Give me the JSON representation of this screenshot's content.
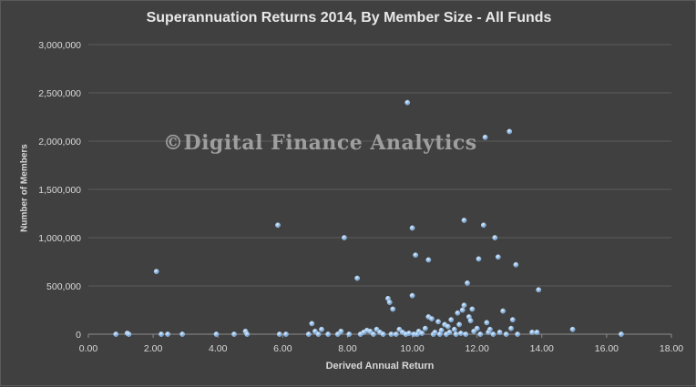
{
  "chart_data": {
    "type": "scatter",
    "title": "Superannuation Returns 2014, By Member Size - All Funds",
    "xlabel": "Derived Annual Return",
    "ylabel": "Number of Members",
    "xlim": [
      0,
      18
    ],
    "ylim": [
      0,
      3000000
    ],
    "x_ticks": [
      "0.00",
      "2.00",
      "4.00",
      "6.00",
      "8.00",
      "10.00",
      "12.00",
      "14.00",
      "16.00",
      "18.00"
    ],
    "y_ticks": [
      "0",
      "500,000",
      "1,000,000",
      "1,500,000",
      "2,000,000",
      "2,500,000",
      "3,000,000"
    ],
    "grid": "horizontal",
    "legend": "none",
    "marker_color": "#9cc3ea",
    "series": [
      {
        "points": [
          [
            0.85,
            0
          ],
          [
            1.2,
            10000
          ],
          [
            1.25,
            0
          ],
          [
            2.1,
            650000
          ],
          [
            2.25,
            0
          ],
          [
            2.45,
            0
          ],
          [
            2.9,
            0
          ],
          [
            3.95,
            0
          ],
          [
            4.5,
            0
          ],
          [
            4.85,
            30000
          ],
          [
            4.9,
            0
          ],
          [
            5.85,
            1130000
          ],
          [
            5.9,
            0
          ],
          [
            6.1,
            0
          ],
          [
            6.8,
            0
          ],
          [
            6.9,
            110000
          ],
          [
            7.0,
            30000
          ],
          [
            7.1,
            0
          ],
          [
            7.2,
            50000
          ],
          [
            7.4,
            0
          ],
          [
            7.7,
            0
          ],
          [
            7.8,
            30000
          ],
          [
            7.9,
            1000000
          ],
          [
            8.05,
            0
          ],
          [
            8.3,
            580000
          ],
          [
            8.4,
            0
          ],
          [
            8.5,
            20000
          ],
          [
            8.6,
            40000
          ],
          [
            8.7,
            30000
          ],
          [
            8.8,
            0
          ],
          [
            8.9,
            50000
          ],
          [
            9.0,
            20000
          ],
          [
            9.1,
            0
          ],
          [
            9.25,
            370000
          ],
          [
            9.3,
            330000
          ],
          [
            9.35,
            0
          ],
          [
            9.4,
            260000
          ],
          [
            9.5,
            0
          ],
          [
            9.6,
            50000
          ],
          [
            9.7,
            20000
          ],
          [
            9.8,
            0
          ],
          [
            9.85,
            2400000
          ],
          [
            9.9,
            10000
          ],
          [
            10.0,
            400000
          ],
          [
            10.0,
            1100000
          ],
          [
            10.05,
            0
          ],
          [
            10.1,
            820000
          ],
          [
            10.15,
            0
          ],
          [
            10.2,
            30000
          ],
          [
            10.3,
            10000
          ],
          [
            10.4,
            60000
          ],
          [
            10.5,
            770000
          ],
          [
            10.5,
            180000
          ],
          [
            10.6,
            160000
          ],
          [
            10.65,
            0
          ],
          [
            10.7,
            20000
          ],
          [
            10.8,
            130000
          ],
          [
            10.85,
            0
          ],
          [
            10.9,
            40000
          ],
          [
            11.0,
            100000
          ],
          [
            11.05,
            0
          ],
          [
            11.1,
            80000
          ],
          [
            11.15,
            20000
          ],
          [
            11.2,
            150000
          ],
          [
            11.3,
            50000
          ],
          [
            11.35,
            0
          ],
          [
            11.4,
            220000
          ],
          [
            11.45,
            100000
          ],
          [
            11.5,
            10000
          ],
          [
            11.55,
            250000
          ],
          [
            11.6,
            300000
          ],
          [
            11.6,
            1180000
          ],
          [
            11.65,
            0
          ],
          [
            11.7,
            530000
          ],
          [
            11.75,
            180000
          ],
          [
            11.8,
            140000
          ],
          [
            11.85,
            260000
          ],
          [
            11.9,
            30000
          ],
          [
            12.0,
            60000
          ],
          [
            12.05,
            780000
          ],
          [
            12.1,
            0
          ],
          [
            12.2,
            1130000
          ],
          [
            12.25,
            2040000
          ],
          [
            12.3,
            120000
          ],
          [
            12.35,
            20000
          ],
          [
            12.4,
            50000
          ],
          [
            12.5,
            0
          ],
          [
            12.55,
            1000000
          ],
          [
            12.65,
            800000
          ],
          [
            12.7,
            20000
          ],
          [
            12.8,
            240000
          ],
          [
            12.9,
            0
          ],
          [
            13.0,
            2100000
          ],
          [
            13.05,
            60000
          ],
          [
            13.1,
            150000
          ],
          [
            13.2,
            720000
          ],
          [
            13.25,
            0
          ],
          [
            13.7,
            20000
          ],
          [
            13.85,
            20000
          ],
          [
            13.9,
            460000
          ],
          [
            14.95,
            50000
          ],
          [
            16.45,
            0
          ]
        ]
      }
    ]
  },
  "watermark": "©Digital Finance Analytics"
}
